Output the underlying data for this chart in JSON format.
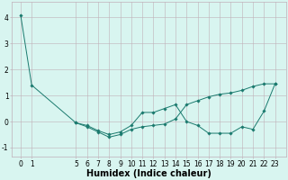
{
  "x_upper": [
    0,
    1,
    5,
    6,
    7,
    8,
    9,
    10,
    11,
    12,
    13,
    14,
    15,
    16,
    17,
    18,
    19,
    20,
    21,
    22,
    23
  ],
  "y_upper": [
    4.1,
    1.4,
    -0.05,
    -0.15,
    -0.35,
    -0.5,
    -0.4,
    -0.15,
    0.35,
    0.35,
    0.5,
    0.65,
    0.0,
    -0.15,
    -0.45,
    -0.45,
    -0.45,
    -0.2,
    -0.3,
    0.4,
    1.45
  ],
  "x_lower": [
    5,
    6,
    7,
    8,
    9,
    10,
    11,
    12,
    13,
    14,
    15,
    16,
    17,
    18,
    19,
    20,
    21,
    22,
    23
  ],
  "y_lower": [
    -0.05,
    -0.2,
    -0.4,
    -0.6,
    -0.5,
    -0.3,
    -0.2,
    -0.15,
    -0.1,
    0.1,
    0.65,
    0.8,
    0.95,
    1.05,
    1.1,
    1.2,
    1.35,
    1.45,
    1.45
  ],
  "line_color": "#1a7a6e",
  "marker": "D",
  "marker_size": 1.8,
  "bg_color": "#d8f5f0",
  "grid_color": "#c0b0b8",
  "xlabel": "Humidex (Indice chaleur)",
  "xlabel_fontsize": 7,
  "xlim": [
    -0.8,
    24.0
  ],
  "ylim": [
    -1.35,
    4.6
  ],
  "yticks": [
    -1,
    0,
    1,
    2,
    3,
    4
  ],
  "xticks": [
    0,
    1,
    5,
    6,
    7,
    8,
    9,
    10,
    11,
    12,
    13,
    14,
    15,
    16,
    17,
    18,
    19,
    20,
    21,
    22,
    23
  ],
  "tick_fontsize": 5.5,
  "linewidth": 0.7
}
